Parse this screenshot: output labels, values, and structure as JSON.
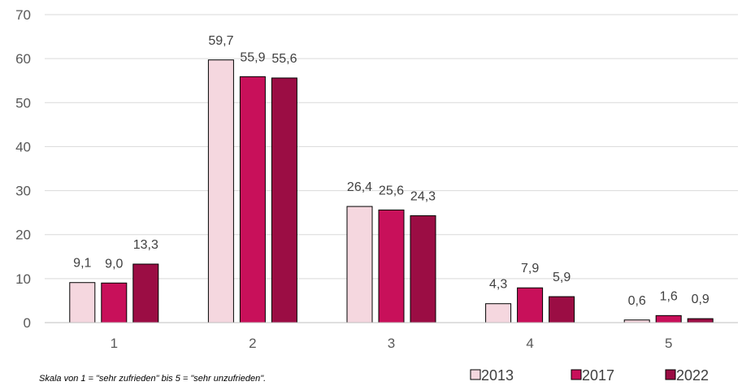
{
  "chart_data": {
    "type": "bar",
    "categories": [
      "1",
      "2",
      "3",
      "4",
      "5"
    ],
    "series": [
      {
        "name": "2013",
        "color": "#f5d7df",
        "values": [
          9.1,
          59.7,
          26.4,
          4.3,
          0.6
        ],
        "labels": [
          "9,1",
          "59,7",
          "26,4",
          "4,3",
          "0,6"
        ]
      },
      {
        "name": "2017",
        "color": "#c8105a",
        "values": [
          9.0,
          55.9,
          25.6,
          7.9,
          1.6
        ],
        "labels": [
          "9,0",
          "55,9",
          "25,6",
          "7,9",
          "1,6"
        ]
      },
      {
        "name": "2022",
        "color": "#9b0d44",
        "values": [
          13.3,
          55.6,
          24.3,
          5.9,
          0.9
        ],
        "labels": [
          "13,3",
          "55,6",
          "24,3",
          "5,9",
          "0,9"
        ]
      }
    ],
    "ylim": [
      0,
      70
    ],
    "yticks": [
      "0",
      "10",
      "20",
      "30",
      "40",
      "50",
      "60",
      "70"
    ],
    "grid": true,
    "legend_position": "bottom-right",
    "annotation": "Skala von 1 = \"sehr zufrieden\" bis 5 = \"sehr unzufrieden\"."
  }
}
